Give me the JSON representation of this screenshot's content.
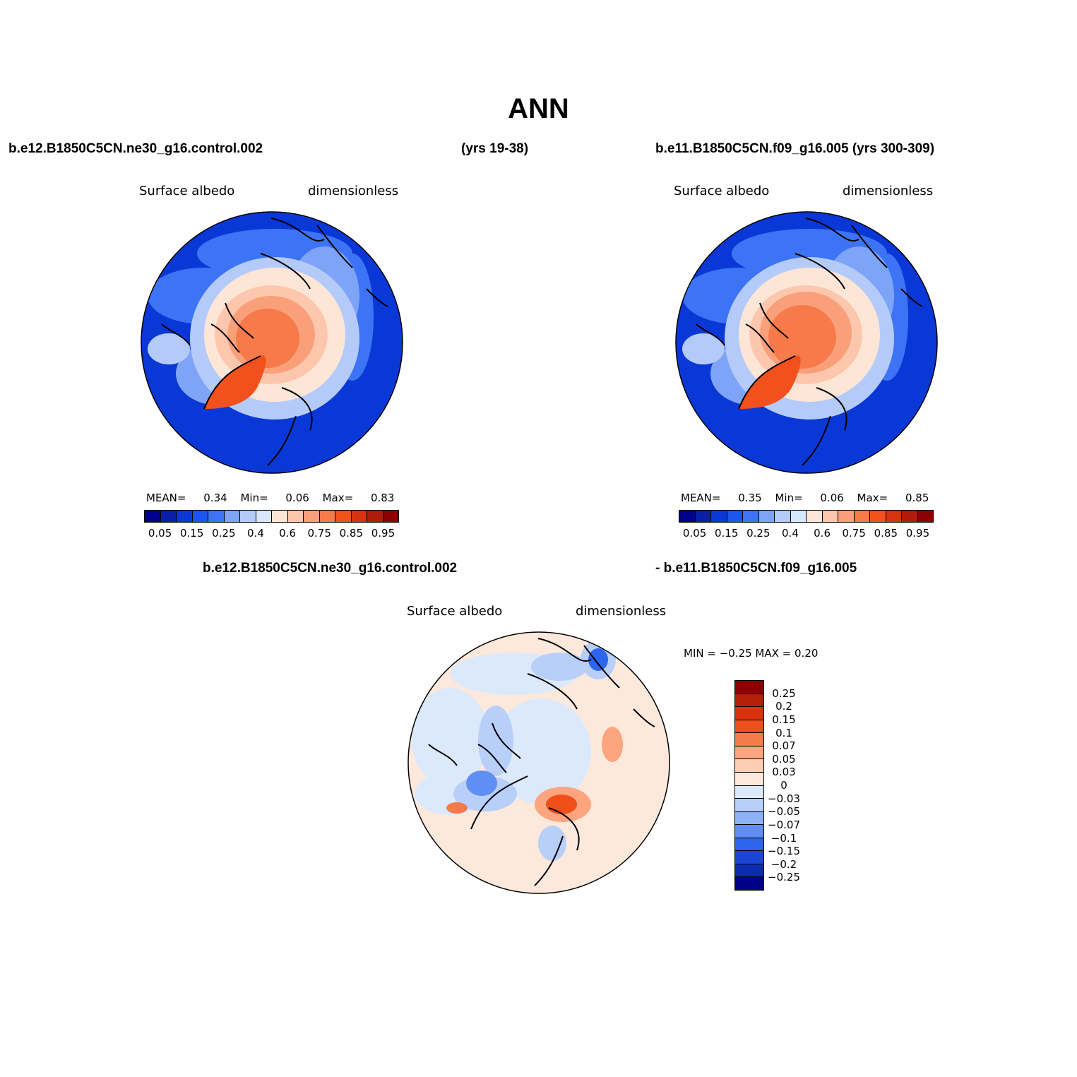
{
  "title": "ANN",
  "panel_top_left": {
    "case": "b.e12.B1850C5CN.ne30_g16.control.002",
    "years": "(yrs 19-38)",
    "variable": "Surface albedo",
    "units": "dimensionless",
    "stats": {
      "mean_label": "MEAN=",
      "mean": "0.34",
      "min_label": "Min=",
      "min": "0.06",
      "max_label": "Max=",
      "max": "0.83"
    }
  },
  "panel_top_right": {
    "case": "b.e11.B1850C5CN.f09_g16.005 (yrs 300-309)",
    "variable": "Surface albedo",
    "units": "dimensionless",
    "stats": {
      "mean_label": "MEAN=",
      "mean": "0.35",
      "min_label": "Min=",
      "min": "0.06",
      "max_label": "Max=",
      "max": "0.85"
    }
  },
  "panel_diff": {
    "case_a": "b.e12.B1850C5CN.ne30_g16.control.002",
    "case_b": "- b.e11.B1850C5CN.f09_g16.005",
    "variable": "Surface albedo",
    "units": "dimensionless",
    "minmax": "MIN =   −0.25  MAX =    0.20"
  },
  "abs_colorbar": {
    "colors": [
      "#00008b",
      "#0a1fa8",
      "#0a38d6",
      "#1c55f0",
      "#3d74f5",
      "#7ea4f8",
      "#b4cbfa",
      "#d9e7fc",
      "#fde6d6",
      "#fcc7ac",
      "#f9a07a",
      "#f77a4a",
      "#f2501c",
      "#d8320f",
      "#b01b0a",
      "#8b0000"
    ],
    "tick_labels": [
      "0.05",
      "0.15",
      "0.25",
      "0.4",
      "0.6",
      "0.75",
      "0.85",
      "0.95"
    ]
  },
  "diff_colorbar": {
    "colors": [
      "#8b0000",
      "#b52006",
      "#d9330d",
      "#f04f1b",
      "#f57a4c",
      "#fca57f",
      "#fdcdb4",
      "#fde9dc",
      "#dbe9fb",
      "#b8cffa",
      "#8eb2f7",
      "#5f8ff2",
      "#2d65ee",
      "#1a45d6",
      "#0b2cb0",
      "#00008b"
    ],
    "tick_labels": [
      "0.25",
      "0.2",
      "0.15",
      "0.1",
      "0.07",
      "0.05",
      "0.03",
      "0",
      "−0.03",
      "−0.05",
      "−0.07",
      "−0.1",
      "−0.15",
      "−0.2",
      "−0.25"
    ]
  }
}
